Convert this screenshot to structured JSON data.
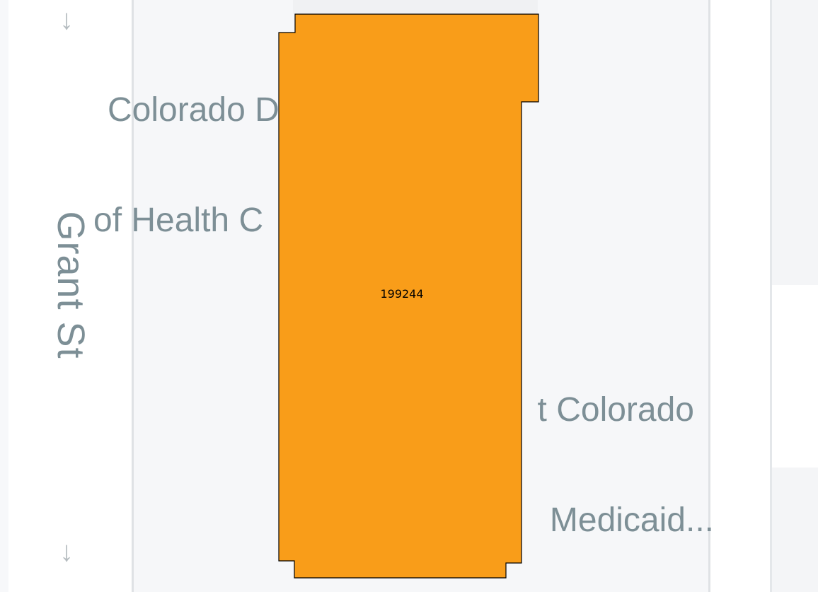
{
  "map": {
    "street_label": "Grant St",
    "poi_top": {
      "line1": "Colorado D",
      "line2": "of Health C"
    },
    "poi_right": {
      "line1": "t Colorado",
      "line2": "Medicaid..."
    },
    "parcel": {
      "id_label": "199244",
      "fill": "#f99d19",
      "stroke": "#000000"
    },
    "arrow_glyph": "↓"
  }
}
